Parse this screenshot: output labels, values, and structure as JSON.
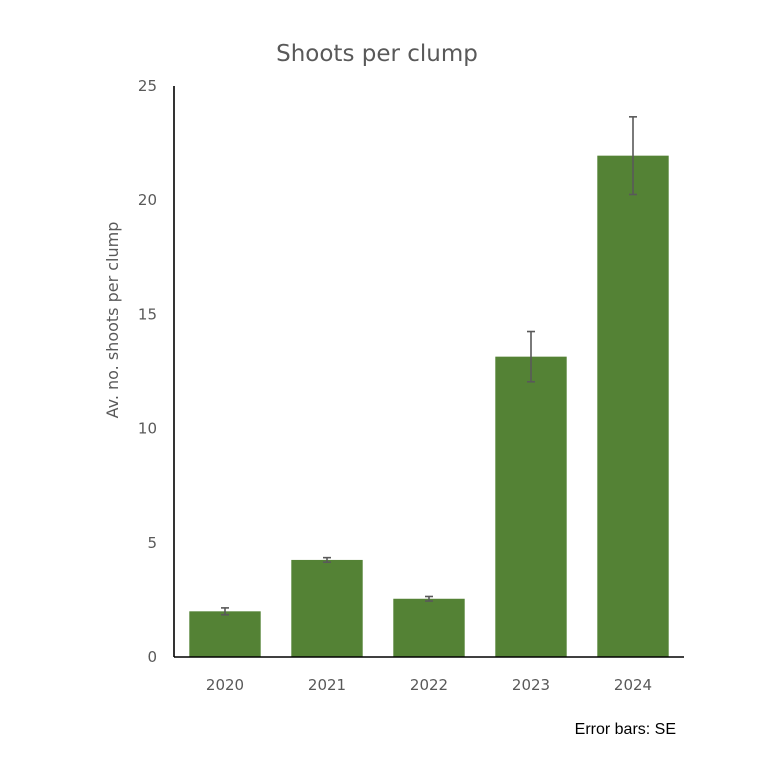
{
  "chart_data": {
    "type": "bar",
    "title": "Shoots per clump",
    "xlabel": "",
    "ylabel": "Av. no. shoots per clump",
    "categories": [
      "2020",
      "2021",
      "2022",
      "2023",
      "2024"
    ],
    "values": [
      2.0,
      4.25,
      2.55,
      13.15,
      21.95
    ],
    "error": [
      0.15,
      0.1,
      0.1,
      1.1,
      1.7
    ],
    "ylim": [
      0,
      25
    ],
    "yticks": [
      0,
      5,
      10,
      15,
      20,
      25
    ],
    "grid": false,
    "bar_color": "#548235",
    "note": "Error bars: SE"
  }
}
